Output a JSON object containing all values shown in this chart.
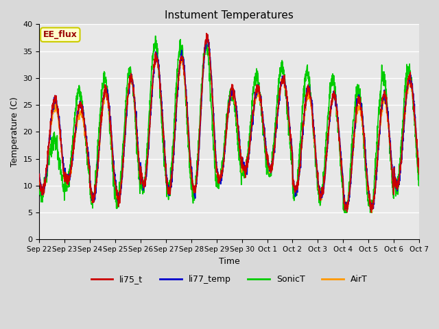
{
  "title": "Instument Temperatures",
  "xlabel": "Time",
  "ylabel": "Temperature (C)",
  "ylim": [
    0,
    40
  ],
  "annotation_text": "EE_flux",
  "annotation_bg": "#ffffcc",
  "annotation_border": "#cccc00",
  "annotation_text_color": "#990000",
  "series_colors": {
    "li75_t": "#cc0000",
    "li77_temp": "#0000cc",
    "SonicT": "#00cc00",
    "AirT": "#ff9900"
  },
  "x_tick_labels": [
    "Sep 22",
    "Sep 23",
    "Sep 24",
    "Sep 25",
    "Sep 26",
    "Sep 27",
    "Sep 28",
    "Sep 29",
    "Sep 30",
    "Oct 1",
    "Oct 2",
    "Oct 3",
    "Oct 4",
    "Oct 5",
    "Oct 6",
    "Oct 7"
  ],
  "background_color": "#e8e8e8",
  "grid_color": "#ffffff",
  "line_width": 1.2,
  "fig_width": 6.4,
  "fig_height": 4.8,
  "dpi": 100
}
